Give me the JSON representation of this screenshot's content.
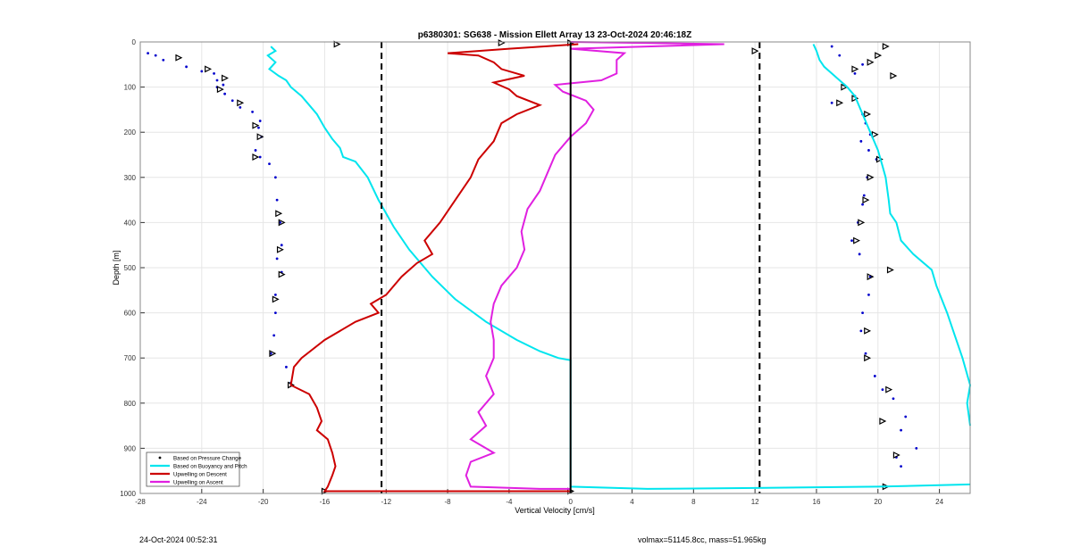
{
  "chart_data": {
    "type": "line",
    "title": "p6380301: SG638 - Mission Ellett Array 13 23-Oct-2024 20:46:18Z",
    "xlabel": "Vertical Velocity [cm/s]",
    "ylabel": "Depth [m]",
    "xlim": [
      -28,
      26
    ],
    "ylim": [
      0,
      1000
    ],
    "y_reversed": true,
    "x_ticks": [
      "-28",
      "-24",
      "-20",
      "-16",
      "-12",
      "-8",
      "-4",
      "0",
      "4",
      "8",
      "12",
      "16",
      "20",
      "24"
    ],
    "y_ticks": [
      "0",
      "100",
      "200",
      "300",
      "400",
      "500",
      "600",
      "700",
      "800",
      "900",
      "1000"
    ],
    "grid": true,
    "legend_position": "bottom-left",
    "vlines": [
      {
        "x": -12.3,
        "style": "dashed",
        "color": "#000000"
      },
      {
        "x": 0,
        "style": "solid",
        "color": "#000000"
      },
      {
        "x": 12.3,
        "style": "dashed",
        "color": "#000000"
      }
    ],
    "series": [
      {
        "name": "Based on Pressure Change",
        "kind": "points",
        "color": "#0000cc",
        "points": [
          [
            -27.5,
            25
          ],
          [
            -27,
            30
          ],
          [
            -26.5,
            40
          ],
          [
            -25,
            55
          ],
          [
            -24,
            65
          ],
          [
            -23.2,
            70
          ],
          [
            -23,
            85
          ],
          [
            -22.6,
            95
          ],
          [
            -23,
            100
          ],
          [
            -22.5,
            115
          ],
          [
            -22,
            130
          ],
          [
            -21.5,
            145
          ],
          [
            -20.7,
            155
          ],
          [
            -20.2,
            175
          ],
          [
            -20.3,
            190
          ],
          [
            -20.1,
            210
          ],
          [
            -20.5,
            240
          ],
          [
            -20.2,
            255
          ],
          [
            -19.6,
            270
          ],
          [
            -19.2,
            300
          ],
          [
            -19.1,
            350
          ],
          [
            -18.9,
            400
          ],
          [
            -18.8,
            450
          ],
          [
            -19.1,
            480
          ],
          [
            -18.8,
            510
          ],
          [
            -19.2,
            560
          ],
          [
            -19.2,
            600
          ],
          [
            -19.3,
            650
          ],
          [
            -19.5,
            690
          ],
          [
            -18.5,
            720
          ],
          [
            -18.2,
            755
          ],
          [
            17,
            10
          ],
          [
            17.5,
            30
          ],
          [
            19,
            50
          ],
          [
            18.5,
            70
          ],
          [
            17.8,
            95
          ],
          [
            18.5,
            120
          ],
          [
            17,
            135
          ],
          [
            19,
            160
          ],
          [
            19.2,
            180
          ],
          [
            19.5,
            205
          ],
          [
            18.9,
            220
          ],
          [
            19.4,
            240
          ],
          [
            19.9,
            260
          ],
          [
            19.3,
            300
          ],
          [
            19.1,
            340
          ],
          [
            19,
            360
          ],
          [
            18.7,
            400
          ],
          [
            18.3,
            440
          ],
          [
            18.8,
            470
          ],
          [
            19.5,
            520
          ],
          [
            19.4,
            560
          ],
          [
            19,
            600
          ],
          [
            18.9,
            640
          ],
          [
            19.2,
            690
          ],
          [
            19.8,
            740
          ],
          [
            20.3,
            770
          ],
          [
            21,
            790
          ],
          [
            21.8,
            830
          ],
          [
            21.5,
            860
          ],
          [
            22.5,
            900
          ],
          [
            21.2,
            920
          ],
          [
            21.5,
            940
          ]
        ],
        "triangles": [
          [
            -25.5,
            35
          ],
          [
            -23.6,
            60
          ],
          [
            -22.5,
            80
          ],
          [
            -22.8,
            105
          ],
          [
            -21.5,
            135
          ],
          [
            -20.5,
            185
          ],
          [
            -20.2,
            210
          ],
          [
            -20.5,
            255
          ],
          [
            -15.2,
            5
          ],
          [
            -4.5,
            2
          ],
          [
            0,
            2
          ],
          [
            -19,
            380
          ],
          [
            -18.8,
            400
          ],
          [
            -18.9,
            460
          ],
          [
            -18.8,
            515
          ],
          [
            -19.2,
            570
          ],
          [
            -19.4,
            690
          ],
          [
            -18.2,
            760
          ],
          [
            -16,
            995
          ],
          [
            0,
            995
          ],
          [
            12,
            20
          ],
          [
            20.5,
            10
          ],
          [
            20,
            30
          ],
          [
            19.5,
            45
          ],
          [
            18.5,
            60
          ],
          [
            21,
            75
          ],
          [
            17.8,
            100
          ],
          [
            18.5,
            125
          ],
          [
            17.5,
            135
          ],
          [
            19.3,
            160
          ],
          [
            19.8,
            205
          ],
          [
            20.1,
            260
          ],
          [
            19.5,
            300
          ],
          [
            19.2,
            350
          ],
          [
            18.9,
            400
          ],
          [
            18.6,
            440
          ],
          [
            20.8,
            505
          ],
          [
            19.5,
            520
          ],
          [
            19.3,
            640
          ],
          [
            19.3,
            700
          ],
          [
            20.7,
            770
          ],
          [
            20.3,
            840
          ],
          [
            21.2,
            915
          ],
          [
            20.5,
            985
          ]
        ]
      },
      {
        "name": "Based on Buoyancy and Pitch",
        "kind": "line",
        "color": "#00e5ee",
        "points": [
          [
            -19.5,
            10
          ],
          [
            -19.2,
            20
          ],
          [
            -19.7,
            30
          ],
          [
            -19.2,
            45
          ],
          [
            -19.6,
            60
          ],
          [
            -19,
            75
          ],
          [
            -18.5,
            85
          ],
          [
            -18.2,
            100
          ],
          [
            -17.5,
            120
          ],
          [
            -17,
            140
          ],
          [
            -16.5,
            160
          ],
          [
            -16,
            190
          ],
          [
            -15.5,
            215
          ],
          [
            -15,
            235
          ],
          [
            -14.8,
            255
          ],
          [
            -14,
            265
          ],
          [
            -13.2,
            300
          ],
          [
            -12.5,
            350
          ],
          [
            -11.5,
            410
          ],
          [
            -10.5,
            460
          ],
          [
            -9,
            520
          ],
          [
            -7.5,
            570
          ],
          [
            -5.5,
            620
          ],
          [
            -3.5,
            660
          ],
          [
            -2,
            685
          ],
          [
            -0.8,
            700
          ],
          [
            0,
            705
          ],
          [
            0,
            985
          ],
          [
            5,
            990
          ],
          [
            12,
            988
          ],
          [
            20,
            985
          ],
          [
            26,
            980
          ]
        ],
        "points_descent_upper": [
          [
            15.8,
            5
          ],
          [
            16,
            20
          ],
          [
            16.2,
            40
          ],
          [
            16.5,
            55
          ],
          [
            17,
            70
          ],
          [
            17.5,
            85
          ],
          [
            18,
            100
          ],
          [
            18.5,
            120
          ],
          [
            19,
            160
          ],
          [
            19.5,
            200
          ],
          [
            20,
            240
          ],
          [
            20.3,
            275
          ],
          [
            20.5,
            300
          ],
          [
            20.7,
            350
          ],
          [
            20.8,
            380
          ],
          [
            21.2,
            400
          ],
          [
            21.5,
            440
          ],
          [
            22.3,
            470
          ],
          [
            23.5,
            505
          ],
          [
            23.8,
            540
          ],
          [
            24.5,
            600
          ],
          [
            25,
            650
          ],
          [
            25.5,
            700
          ],
          [
            26,
            760
          ],
          [
            25.8,
            800
          ],
          [
            26,
            850
          ]
        ]
      },
      {
        "name": "Upwelling on Descent",
        "kind": "line",
        "color": "#cc0000",
        "points": [
          [
            0.5,
            5
          ],
          [
            -4,
            15
          ],
          [
            -8,
            25
          ],
          [
            -6,
            30
          ],
          [
            -5,
            45
          ],
          [
            -4.5,
            60
          ],
          [
            -3,
            75
          ],
          [
            -5,
            90
          ],
          [
            -4,
            105
          ],
          [
            -3.5,
            120
          ],
          [
            -2,
            140
          ],
          [
            -3.5,
            160
          ],
          [
            -4.5,
            180
          ],
          [
            -5,
            220
          ],
          [
            -6,
            260
          ],
          [
            -6.5,
            300
          ],
          [
            -7.5,
            350
          ],
          [
            -8.5,
            400
          ],
          [
            -9.5,
            440
          ],
          [
            -9,
            470
          ],
          [
            -10,
            490
          ],
          [
            -11,
            520
          ],
          [
            -12,
            560
          ],
          [
            -13,
            580
          ],
          [
            -12.5,
            600
          ],
          [
            -14,
            620
          ],
          [
            -16,
            660
          ],
          [
            -17.5,
            700
          ],
          [
            -18,
            720
          ],
          [
            -18.2,
            760
          ],
          [
            -17,
            780
          ],
          [
            -16.5,
            810
          ],
          [
            -16.2,
            840
          ],
          [
            -16.5,
            860
          ],
          [
            -15.8,
            880
          ],
          [
            -15.5,
            910
          ],
          [
            -15.3,
            940
          ],
          [
            -15.5,
            960
          ],
          [
            -15.8,
            985
          ],
          [
            -16,
            995
          ],
          [
            0,
            995
          ]
        ]
      },
      {
        "name": "Upwelling on Ascent",
        "kind": "line",
        "color": "#e020e0",
        "points": [
          [
            0,
            0
          ],
          [
            10,
            5
          ],
          [
            5,
            10
          ],
          [
            0,
            15
          ],
          [
            3.5,
            25
          ],
          [
            3,
            40
          ],
          [
            3,
            55
          ],
          [
            3,
            70
          ],
          [
            2,
            85
          ],
          [
            -1,
            95
          ],
          [
            -0.5,
            110
          ],
          [
            1,
            130
          ],
          [
            1.5,
            150
          ],
          [
            1,
            180
          ],
          [
            0,
            210
          ],
          [
            -1,
            250
          ],
          [
            -1.5,
            290
          ],
          [
            -2,
            330
          ],
          [
            -2.8,
            370
          ],
          [
            -3.2,
            420
          ],
          [
            -3,
            460
          ],
          [
            -3.5,
            500
          ],
          [
            -4.5,
            540
          ],
          [
            -5,
            580
          ],
          [
            -5.2,
            620
          ],
          [
            -5,
            660
          ],
          [
            -5,
            700
          ],
          [
            -5.5,
            740
          ],
          [
            -5,
            780
          ],
          [
            -6,
            820
          ],
          [
            -5.5,
            850
          ],
          [
            -6.5,
            880
          ],
          [
            -5,
            910
          ],
          [
            -6.5,
            930
          ],
          [
            -6.8,
            960
          ],
          [
            -6.5,
            985
          ],
          [
            -2,
            990
          ],
          [
            0,
            990
          ]
        ]
      }
    ]
  },
  "footer": {
    "left": "24-Oct-2024 00:52:31",
    "right": "volmax=51145.8cc, mass=51.965kg"
  }
}
